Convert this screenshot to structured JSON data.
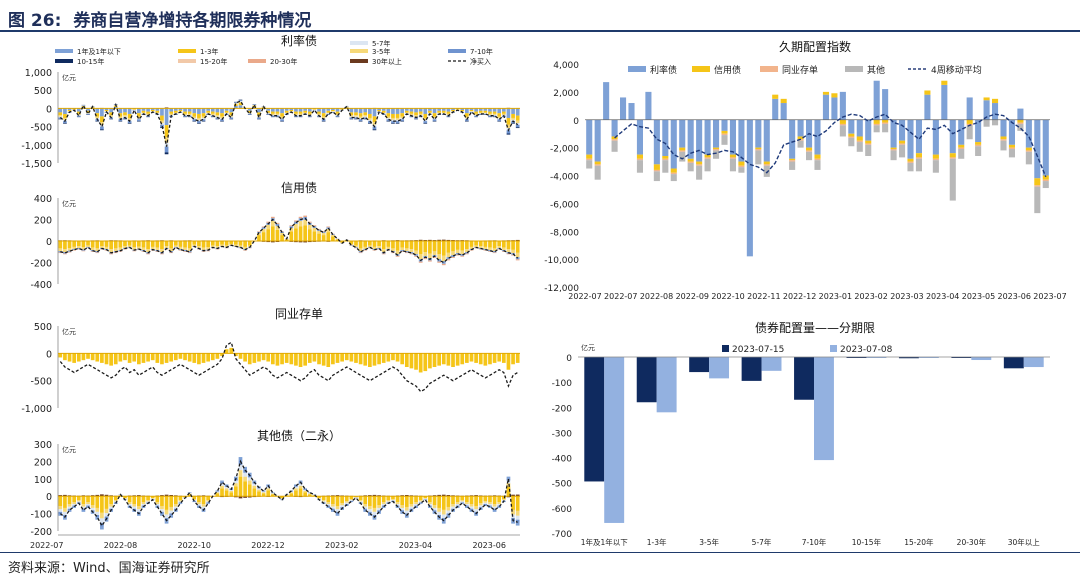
{
  "figure": {
    "number": "图 26:",
    "title": "券商自营净增持各期限券种情况",
    "source": "资料来源：Wind、国海证券研究所"
  },
  "colors": {
    "y1": "#7ea1d6",
    "y1l": "#b8cdec",
    "y13": "#f5c518",
    "y35": "#f6d97a",
    "y57": "#dce6f2",
    "y710": "#6f93cf",
    "y1015": "#0f2a5f",
    "y1520": "#f2c9a8",
    "y2030": "#eaa98a",
    "y30": "#6b3a1f",
    "net": "#1a1a1a",
    "rate": "#7ea1d6",
    "credit": "#f5c518",
    "ncd": "#f2b48c",
    "other": "#b8b8b8",
    "navy": "#0f2a5f",
    "light": "#93b1e0"
  },
  "chart_data": [
    {
      "type": "bar",
      "id": "rate",
      "title": "利率债",
      "unit_label": "亿元",
      "ylim": [
        -1500,
        1000
      ],
      "yticks": [
        "1,000",
        "500",
        "0",
        "-500",
        "-1,000",
        "-1,500"
      ],
      "legend": [
        "1年及1年以下",
        "1-3年",
        "3-5年",
        "5-7年",
        "7-10年",
        "10-15年",
        "15-20年",
        "20-30年",
        "30年以上",
        "净买入"
      ],
      "net": [
        -250,
        -350,
        -100,
        -50,
        -200,
        80,
        -150,
        50,
        -300,
        -500,
        -100,
        -250,
        100,
        -300,
        -250,
        -350,
        -50,
        -300,
        -150,
        -200,
        -100,
        -150,
        -450,
        -1050,
        -200,
        -150,
        -100,
        -200,
        -200,
        -300,
        -350,
        -300,
        -150,
        -200,
        -250,
        -300,
        -150,
        -250,
        150,
        200,
        0,
        -150,
        100,
        -250,
        50,
        -150,
        -200,
        -200,
        -300,
        -150,
        -100,
        -200,
        -200,
        -150,
        -200,
        -50,
        -200,
        -300,
        -150,
        -100,
        -200,
        -50,
        50,
        -250,
        -250,
        -300,
        -250,
        -350,
        -500,
        -100,
        -150,
        -300,
        -350,
        -350,
        -300,
        -150,
        -200,
        -250,
        -200,
        -350,
        -150,
        -300,
        -150,
        -150,
        -200,
        -100,
        -50,
        -100,
        -300,
        -100,
        -200,
        -150,
        -150,
        -200,
        -200,
        -300,
        -200,
        -600,
        -350,
        -450
      ]
    },
    {
      "type": "bar",
      "id": "credit",
      "title": "信用债",
      "unit_label": "亿元",
      "ylim": [
        -400,
        400
      ],
      "yticks": [
        "400",
        "200",
        "0",
        "-200",
        "-400"
      ],
      "net": [
        -100,
        -110,
        -95,
        -80,
        -70,
        -85,
        -60,
        -90,
        -100,
        -70,
        -80,
        -110,
        -100,
        -90,
        -70,
        -60,
        -85,
        -75,
        -90,
        -110,
        -80,
        -90,
        -110,
        -70,
        -100,
        -60,
        -80,
        -90,
        -100,
        -50,
        -70,
        -90,
        -85,
        -60,
        -70,
        -50,
        -60,
        -40,
        -50,
        -60,
        -80,
        -60,
        0,
        80,
        120,
        160,
        200,
        150,
        80,
        20,
        130,
        170,
        200,
        210,
        160,
        130,
        100,
        80,
        120,
        60,
        20,
        -20,
        10,
        -40,
        -60,
        -100,
        -80,
        -60,
        -80,
        -70,
        -110,
        -80,
        -100,
        -130,
        -90,
        -100,
        -110,
        -130,
        -180,
        -150,
        -170,
        -140,
        -180,
        -200,
        -160,
        -140,
        -120,
        -130,
        -110,
        -80,
        -60,
        -70,
        -80,
        -90,
        -100,
        -70,
        -90,
        -110,
        -120,
        -160
      ]
    },
    {
      "type": "bar",
      "id": "ncd",
      "title": "同业存单",
      "unit_label": "亿元",
      "ylim": [
        -1000,
        500
      ],
      "yticks": [
        "500",
        "0",
        "-500",
        "-1,000"
      ],
      "net": [
        -150,
        -250,
        -300,
        -350,
        -300,
        -250,
        -200,
        -250,
        -300,
        -350,
        -400,
        -450,
        -400,
        -300,
        -250,
        -350,
        -300,
        -400,
        -350,
        -300,
        -250,
        -350,
        -400,
        -350,
        -300,
        -250,
        -200,
        -250,
        -300,
        -350,
        -400,
        -350,
        -300,
        -250,
        -200,
        -100,
        150,
        200,
        -100,
        -200,
        -300,
        -400,
        -350,
        -300,
        -250,
        -300,
        -400,
        -450,
        -400,
        -350,
        -400,
        -450,
        -500,
        -450,
        -350,
        -300,
        -400,
        -450,
        -500,
        -400,
        -350,
        -300,
        -250,
        -300,
        -350,
        -400,
        -450,
        -500,
        -450,
        -400,
        -350,
        -300,
        -250,
        -300,
        -400,
        -500,
        -550,
        -600,
        -700,
        -650,
        -550,
        -500,
        -450,
        -400,
        -450,
        -500,
        -450,
        -400,
        -350,
        -300,
        -350,
        -400,
        -450,
        -400,
        -350,
        -300,
        -350,
        -600,
        -400,
        -350
      ]
    },
    {
      "type": "bar",
      "id": "other",
      "title": "其他债（二永）",
      "unit_label": "亿元",
      "ylim": [
        -200,
        300
      ],
      "yticks": [
        "300",
        "200",
        "100",
        "0",
        "-100",
        "-200"
      ],
      "xticks": [
        "2022-07",
        "2022-08",
        "2022-10",
        "2022-12",
        "2023-02",
        "2023-04",
        "2023-06"
      ],
      "net": [
        -100,
        -120,
        -80,
        -60,
        -40,
        -80,
        -60,
        -90,
        -120,
        -170,
        -130,
        -80,
        -40,
        10,
        -20,
        -60,
        -80,
        -100,
        -60,
        -40,
        -20,
        -60,
        -100,
        -140,
        -110,
        -80,
        -40,
        -10,
        20,
        -30,
        -60,
        -80,
        -40,
        0,
        30,
        80,
        60,
        40,
        100,
        200,
        150,
        120,
        80,
        50,
        30,
        60,
        20,
        0,
        -20,
        10,
        30,
        60,
        80,
        40,
        20,
        10,
        -20,
        -40,
        -60,
        -80,
        -100,
        -70,
        -50,
        -30,
        -10,
        -40,
        -80,
        -100,
        -120,
        -90,
        -60,
        -40,
        -30,
        -60,
        -90,
        -110,
        -80,
        -60,
        -40,
        -20,
        -60,
        -90,
        -120,
        -140,
        -110,
        -80,
        -60,
        -40,
        -60,
        -80,
        -100,
        -70,
        -50,
        -60,
        -80,
        -60,
        -30,
        100,
        -140,
        -150
      ]
    },
    {
      "type": "bar",
      "id": "duration",
      "title": "久期配置指数",
      "ylim": [
        -12000,
        4000
      ],
      "yticks": [
        "4,000",
        "2,000",
        "0",
        "-2,000",
        "-4,000",
        "-6,000",
        "-8,000",
        "-10,000",
        "-12,000"
      ],
      "legend": [
        "利率债",
        "信用债",
        "同业存单",
        "其他",
        "4周移动平均"
      ],
      "xticks": [
        "2022-07",
        "2022-07",
        "2022-08",
        "2022-09",
        "2022-10",
        "2022-11",
        "2022-12",
        "2023-01",
        "2023-02",
        "2023-03",
        "2023-04",
        "2023-05",
        "2023-06",
        "2023-07"
      ],
      "series": [
        {
          "name": "利率债",
          "values": [
            -2500,
            -3000,
            2700,
            -1200,
            1600,
            1200,
            -2500,
            2000,
            -3200,
            -2600,
            -3500,
            -2000,
            -2800,
            -3000,
            -2500,
            -2000,
            -800,
            -2500,
            -3000,
            -9800,
            -2000,
            -3000,
            1500,
            1200,
            -2800,
            -1200,
            -2000,
            -2500,
            1800,
            1600,
            2000,
            -1000,
            -1200,
            -1500,
            2800,
            2200,
            -2000,
            -1500,
            -2800,
            -2400,
            1800,
            -2500,
            2500,
            -2400,
            -1800,
            1600,
            -1600,
            1400,
            1200,
            -1200,
            -1800,
            800,
            -2000,
            -4200,
            -4000
          ]
        },
        {
          "name": "信用债",
          "values": [
            -300,
            -200,
            0,
            -200,
            0,
            0,
            -300,
            0,
            -400,
            -200,
            -300,
            -200,
            -200,
            -200,
            -200,
            -100,
            -200,
            -200,
            -300,
            0,
            -100,
            -200,
            300,
            300,
            -100,
            -200,
            -200,
            -300,
            200,
            300,
            -300,
            -200,
            -300,
            -200,
            -300,
            -200,
            -100,
            -200,
            -200,
            -300,
            300,
            -300,
            300,
            -300,
            -200,
            -300,
            -200,
            200,
            300,
            -200,
            -200,
            -200,
            -200,
            -500,
            -300
          ]
        },
        {
          "name": "同业存单",
          "values": [
            -100,
            -100,
            0,
            -100,
            0,
            0,
            -100,
            0,
            -100,
            -100,
            -100,
            -100,
            -100,
            -100,
            -100,
            -100,
            -100,
            -100,
            -100,
            0,
            -100,
            -100,
            0,
            0,
            -100,
            -100,
            -100,
            -100,
            0,
            0,
            -100,
            -100,
            -100,
            -100,
            -100,
            -100,
            -100,
            -100,
            -100,
            -100,
            0,
            -100,
            0,
            -100,
            -100,
            -100,
            -100,
            0,
            0,
            -100,
            -100,
            -100,
            -100,
            -100,
            -100
          ]
        },
        {
          "name": "其他",
          "values": [
            -600,
            -1000,
            0,
            -800,
            0,
            0,
            -900,
            0,
            -700,
            -900,
            -500,
            -700,
            -600,
            -1000,
            -900,
            -600,
            -700,
            -900,
            -400,
            0,
            -1000,
            -800,
            0,
            0,
            -600,
            -500,
            -600,
            -700,
            0,
            0,
            -800,
            -600,
            -700,
            -800,
            -500,
            -600,
            -700,
            -900,
            -600,
            -900,
            0,
            -900,
            0,
            -3000,
            -700,
            -1000,
            -700,
            -500,
            -400,
            -700,
            -600,
            -500,
            -900,
            -1900,
            -500
          ]
        }
      ],
      "ma": [
        null,
        null,
        null,
        -1300,
        -800,
        -300,
        -500,
        -600,
        -1400,
        -1700,
        -2500,
        -2800,
        -2400,
        -2200,
        -2500,
        -2400,
        -2200,
        -2300,
        -2700,
        -3200,
        -3400,
        -3800,
        -3100,
        -1800,
        -1600,
        -1400,
        -1000,
        -1200,
        -800,
        -200,
        200,
        400,
        300,
        -100,
        200,
        400,
        -200,
        -400,
        -900,
        -1400,
        -600,
        -700,
        -400,
        -1000,
        -700,
        -400,
        -200,
        200,
        400,
        300,
        -200,
        -600,
        -1200,
        -2600,
        -4100
      ]
    },
    {
      "type": "bar",
      "id": "term",
      "title": "债券配置量——分期限",
      "unit_label": "亿元",
      "ylim": [
        -700,
        0
      ],
      "yticks": [
        "0",
        "-100",
        "-200",
        "-300",
        "-400",
        "-500",
        "-600",
        "-700"
      ],
      "categories": [
        "1年及1年以下",
        "1-3年",
        "3-5年",
        "5-7年",
        "7-10年",
        "10-15年",
        "15-20年",
        "20-30年",
        "30年以上"
      ],
      "series": [
        {
          "name": "2023-07-15",
          "values": [
            -495,
            -180,
            -60,
            -95,
            -170,
            -2,
            -5,
            -3,
            -45
          ]
        },
        {
          "name": "2023-07-08",
          "values": [
            -660,
            -220,
            -85,
            -55,
            -410,
            -2,
            -3,
            -12,
            -40
          ]
        }
      ]
    }
  ]
}
